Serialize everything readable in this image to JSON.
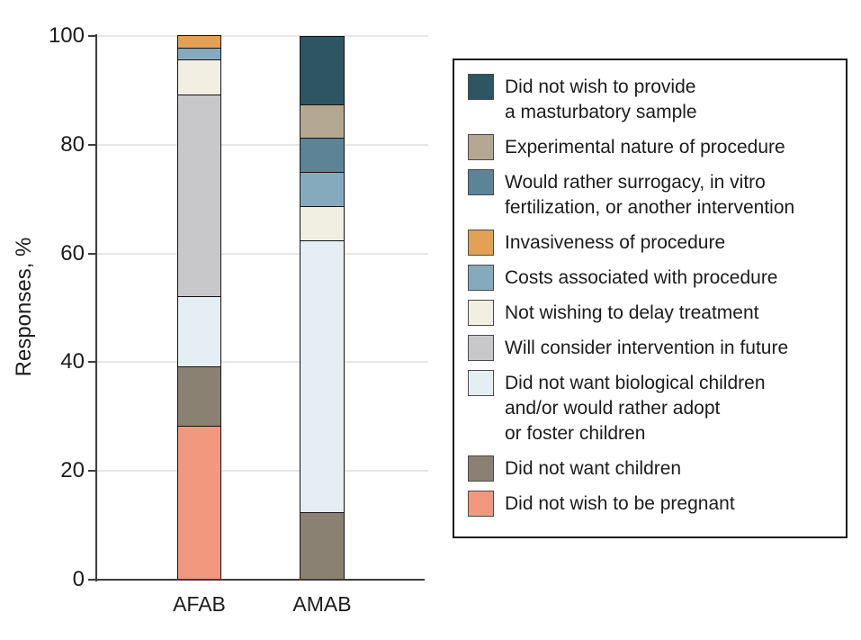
{
  "figure": {
    "background": "#ffffff"
  },
  "chart_data": {
    "type": "stacked-bar",
    "title": "",
    "ylabel": "Responses, %",
    "xlabel": "",
    "ylim": [
      0,
      100
    ],
    "yticks": [
      0,
      20,
      40,
      60,
      80,
      100
    ],
    "grid": true,
    "legend_position": "right",
    "categories": [
      "AFAB",
      "AMAB"
    ],
    "series": [
      {
        "name": "Did not wish to provide a masturbatory sample",
        "label_lines": [
          "Did not wish to provide",
          "a masturbatory sample"
        ],
        "color": "#2d5564",
        "values": [
          0,
          12.5
        ]
      },
      {
        "name": "Experimental nature of procedure",
        "label_lines": [
          "Experimental nature of procedure"
        ],
        "color": "#b3a78f",
        "values": [
          0,
          6.25
        ]
      },
      {
        "name": "Would rather surrogacy, in vitro fertilization, or another intervention",
        "label_lines": [
          "Would rather surrogacy, in vitro",
          "fertilization, or another intervention"
        ],
        "color": "#5d8397",
        "values": [
          0,
          6.25
        ]
      },
      {
        "name": "Invasiveness of procedure",
        "label_lines": [
          "Invasiveness of procedure"
        ],
        "color": "#e3a155",
        "values": [
          2.2,
          0
        ]
      },
      {
        "name": "Costs associated with procedure",
        "label_lines": [
          "Costs associated with procedure"
        ],
        "color": "#86aabd",
        "values": [
          2.2,
          6.25
        ]
      },
      {
        "name": "Not wishing to delay treatment",
        "label_lines": [
          "Not wishing to delay treatment"
        ],
        "color": "#f0efe2",
        "values": [
          6.5,
          6.25
        ]
      },
      {
        "name": "Will consider intervention in future",
        "label_lines": [
          "Will consider intervention in future"
        ],
        "color": "#c8c8cb",
        "values": [
          37.0,
          0
        ]
      },
      {
        "name": "Did not want biological children and/or would rather adopt or foster children",
        "label_lines": [
          "Did not want biological children",
          "and/or would rather adopt",
          "or foster children"
        ],
        "color": "#e4eef3",
        "values": [
          13.0,
          50.0
        ]
      },
      {
        "name": "Did not want children",
        "label_lines": [
          "Did not want children"
        ],
        "color": "#8b8173",
        "values": [
          10.9,
          12.5
        ]
      },
      {
        "name": "Did not wish to be pregnant",
        "label_lines": [
          "Did not wish to be pregnant"
        ],
        "color": "#f2987f",
        "values": [
          28.3,
          0
        ]
      }
    ]
  }
}
